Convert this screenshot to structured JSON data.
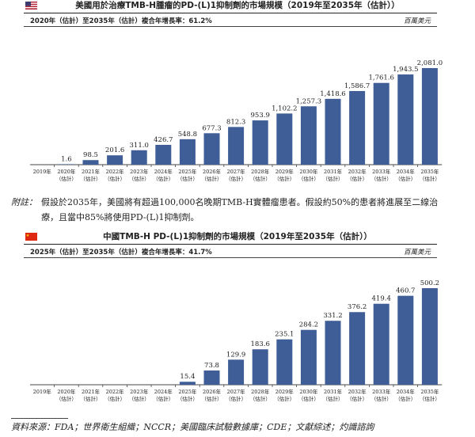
{
  "colors": {
    "bar": "#3f5e97",
    "axis": "#444444"
  },
  "panels": [
    {
      "flag": "us-flag-icon",
      "title": "美國用於治療TMB-H腫瘤的PD-(L)1抑制劑的市場規模（2019年至2035年（估計））",
      "cagr": "2020年（估計）至2035年（估計）複合年增長率：61.2%",
      "unit": "百萬美元"
    },
    {
      "flag": "china-flag-icon",
      "title": "中國TMB-H PD-(L)1抑制劑的市場規模（2019年至2035年（估計））",
      "cagr": "2025年（估計）至2035年（估計）複合年增長率：41.7%",
      "unit": "百萬美元"
    }
  ],
  "note": {
    "label": "附註：",
    "text": "假設於2035年，美國將有超過100,000名晚期TMB-H實體瘤患者。假設約50%的患者將進展至二線治療，且當中85%將使用PD-(L)1抑制劑。"
  },
  "source": "資料來源：FDA；世界衛生組織；NCCR；美國臨床試驗數據庫；CDE；文獻綜述；灼識諮詢",
  "chart_data": [
    {
      "type": "bar",
      "title": "美國用於治療TMB-H腫瘤的PD-(L)1抑制劑的市場規模（2019年至2035年（估計））",
      "categories": [
        "2019年",
        "2020年\n（估計）",
        "2021年\n（估計）",
        "2022年\n（估計）",
        "2023年\n（估計）",
        "2024年\n（估計）",
        "2025年\n（估計）",
        "2026年\n（估計）",
        "2027年\n（估計）",
        "2028年\n（估計）",
        "2029年\n（估計）",
        "2030年\n（估計）",
        "2031年\n（估計）",
        "2032年\n（估計）",
        "2033年\n（估計）",
        "2034年\n（估計）",
        "2035年\n（估計）"
      ],
      "values": [
        null,
        1.6,
        98.5,
        201.6,
        311.0,
        426.7,
        548.8,
        677.3,
        812.3,
        953.9,
        1102.2,
        1257.3,
        1418.6,
        1586.7,
        1761.6,
        1943.5,
        2081.0
      ],
      "labels": [
        "",
        "1.6",
        "98.5",
        "201.6",
        "311.0",
        "426.7",
        "548.8",
        "677.3",
        "812.3",
        "953.9",
        "1,102.2",
        "1,257.3",
        "1,418.6",
        "1,586.7",
        "1,761.6",
        "1,943.5",
        "2,081.0"
      ],
      "ylabel": "百萬美元",
      "ylim": [
        0,
        2081.0
      ]
    },
    {
      "type": "bar",
      "title": "中國TMB-H PD-(L)1抑制劑的市場規模（2019年至2035年（估計））",
      "categories": [
        "2019年",
        "2020年\n（估計）",
        "2021年\n（估計）",
        "2022年\n（估計）",
        "2023年\n（估計）",
        "2024年\n（估計）",
        "2025年\n（估計）",
        "2026年\n（估計）",
        "2027年\n（估計）",
        "2028年\n（估計）",
        "2029年\n（估計）",
        "2030年\n（估計）",
        "2031年\n（估計）",
        "2032年\n（估計）",
        "2033年\n（估計）",
        "2034年\n（估計）",
        "2035年\n（估計）"
      ],
      "values": [
        null,
        null,
        null,
        null,
        null,
        null,
        15.4,
        73.8,
        129.9,
        183.6,
        235.1,
        284.2,
        331.2,
        376.2,
        419.4,
        460.7,
        500.2
      ],
      "labels": [
        "",
        "",
        "",
        "",
        "",
        "",
        "15.4",
        "73.8",
        "129.9",
        "183.6",
        "235.1",
        "284.2",
        "331.2",
        "376.2",
        "419.4",
        "460.7",
        "500.2"
      ],
      "ylabel": "百萬美元",
      "ylim": [
        0,
        500.2
      ]
    }
  ]
}
